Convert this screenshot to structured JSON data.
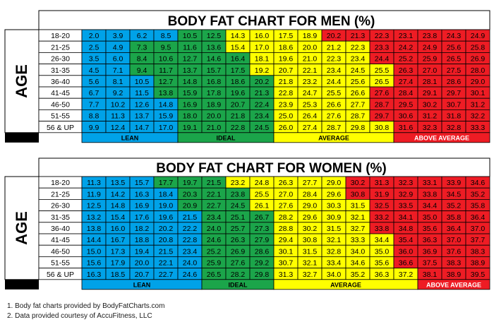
{
  "chart_data": [
    {
      "type": "table",
      "title": "BODY FAT CHART FOR MEN (%)",
      "side_label": "AGE",
      "rows": [
        "18-20",
        "21-25",
        "26-30",
        "31-35",
        "36-40",
        "41-45",
        "46-50",
        "51-55",
        "56 & UP"
      ],
      "values": [
        [
          2.0,
          3.9,
          6.2,
          8.5,
          10.5,
          12.5,
          14.3,
          16.0,
          17.5,
          18.9,
          20.2,
          21.3,
          22.3,
          23.1,
          23.8,
          24.3,
          24.9
        ],
        [
          2.5,
          4.9,
          7.3,
          9.5,
          11.6,
          13.6,
          15.4,
          17.0,
          18.6,
          20.0,
          21.2,
          22.3,
          23.3,
          24.2,
          24.9,
          25.6,
          25.8
        ],
        [
          3.5,
          6.0,
          8.4,
          10.6,
          12.7,
          14.6,
          16.4,
          18.1,
          19.6,
          21.0,
          22.3,
          23.4,
          24.4,
          25.2,
          25.9,
          26.5,
          26.9
        ],
        [
          4.5,
          7.1,
          9.4,
          11.7,
          13.7,
          15.7,
          17.5,
          19.2,
          20.7,
          22.1,
          23.4,
          24.5,
          25.5,
          26.3,
          27.0,
          27.5,
          28.0
        ],
        [
          5.6,
          8.1,
          10.5,
          12.7,
          14.8,
          16.8,
          18.6,
          20.2,
          21.8,
          23.2,
          24.4,
          25.6,
          26.5,
          27.4,
          28.1,
          28.6,
          29.0
        ],
        [
          6.7,
          9.2,
          11.5,
          13.8,
          15.9,
          17.8,
          19.6,
          21.3,
          22.8,
          24.7,
          25.5,
          26.6,
          27.6,
          28.4,
          29.1,
          29.7,
          30.1
        ],
        [
          7.7,
          10.2,
          12.6,
          14.8,
          16.9,
          18.9,
          20.7,
          22.4,
          23.9,
          25.3,
          26.6,
          27.7,
          28.7,
          29.5,
          30.2,
          30.7,
          31.2
        ],
        [
          8.8,
          11.3,
          13.7,
          15.9,
          18.0,
          20.0,
          21.8,
          23.4,
          25.0,
          26.4,
          27.6,
          28.7,
          29.7,
          30.6,
          31.2,
          31.8,
          32.2
        ],
        [
          9.9,
          12.4,
          14.7,
          17.0,
          19.1,
          21.0,
          22.8,
          24.5,
          26.0,
          27.4,
          28.7,
          29.8,
          30.8,
          31.6,
          32.3,
          32.8,
          33.3
        ]
      ],
      "categories": [
        {
          "label": "LEAN",
          "color": "#00a2e8",
          "columns": 4
        },
        {
          "label": "IDEAL",
          "color": "#1ba54a",
          "columns": 4
        },
        {
          "label": "AVERAGE",
          "color": "#ffff00",
          "columns": 5
        },
        {
          "label": "ABOVE AVERAGE",
          "color": "#ee1c24",
          "columns": 4
        }
      ],
      "cell_zones": [
        [
          0,
          0,
          0,
          0,
          1,
          1,
          2,
          2,
          2,
          2,
          3,
          3,
          3,
          3,
          3,
          3,
          3
        ],
        [
          0,
          0,
          1,
          1,
          1,
          1,
          2,
          2,
          2,
          2,
          2,
          2,
          3,
          3,
          3,
          3,
          3
        ],
        [
          0,
          0,
          1,
          1,
          1,
          1,
          1,
          2,
          2,
          2,
          2,
          2,
          3,
          3,
          3,
          3,
          3
        ],
        [
          0,
          0,
          1,
          1,
          1,
          1,
          1,
          2,
          2,
          2,
          2,
          2,
          2,
          3,
          3,
          3,
          3
        ],
        [
          0,
          0,
          0,
          1,
          1,
          1,
          1,
          1,
          2,
          2,
          2,
          2,
          2,
          3,
          3,
          3,
          3
        ],
        [
          0,
          0,
          0,
          1,
          1,
          1,
          1,
          1,
          2,
          2,
          2,
          2,
          3,
          3,
          3,
          3,
          3
        ],
        [
          0,
          0,
          0,
          0,
          1,
          1,
          1,
          1,
          2,
          2,
          2,
          2,
          3,
          3,
          3,
          3,
          3
        ],
        [
          0,
          0,
          0,
          0,
          1,
          1,
          1,
          1,
          2,
          2,
          2,
          2,
          3,
          3,
          3,
          3,
          3
        ],
        [
          0,
          0,
          0,
          0,
          1,
          1,
          1,
          1,
          2,
          2,
          2,
          2,
          2,
          3,
          3,
          3,
          3
        ]
      ]
    },
    {
      "type": "table",
      "title": "BODY FAT CHART FOR WOMEN (%)",
      "side_label": "AGE",
      "rows": [
        "18-20",
        "21-25",
        "26-30",
        "31-35",
        "36-40",
        "41-45",
        "46-50",
        "51-55",
        "56 & UP"
      ],
      "values": [
        [
          11.3,
          13.5,
          15.7,
          17.7,
          19.7,
          21.5,
          23.2,
          24.8,
          26.3,
          27.7,
          29.0,
          30.2,
          31.3,
          32.3,
          33.1,
          33.9,
          34.6
        ],
        [
          11.9,
          14.2,
          16.3,
          18.4,
          20.3,
          22.1,
          23.8,
          25.5,
          27.0,
          28.4,
          29.6,
          30.8,
          31.9,
          32.9,
          33.8,
          34.5,
          35.2
        ],
        [
          12.5,
          14.8,
          16.9,
          19.0,
          20.9,
          22.7,
          24.5,
          26.1,
          27.6,
          29.0,
          30.3,
          31.5,
          32.5,
          33.5,
          34.4,
          35.2,
          35.8
        ],
        [
          13.2,
          15.4,
          17.6,
          19.6,
          21.5,
          23.4,
          25.1,
          26.7,
          28.2,
          29.6,
          30.9,
          32.1,
          33.2,
          34.1,
          35.0,
          35.8,
          36.4
        ],
        [
          13.8,
          16.0,
          18.2,
          20.2,
          22.2,
          24.0,
          25.7,
          27.3,
          28.8,
          30.2,
          31.5,
          32.7,
          33.8,
          34.8,
          35.6,
          36.4,
          37.0
        ],
        [
          14.4,
          16.7,
          18.8,
          20.8,
          22.8,
          24.6,
          26.3,
          27.9,
          29.4,
          30.8,
          32.1,
          33.3,
          34.4,
          35.4,
          36.3,
          37.0,
          37.7
        ],
        [
          15.0,
          17.3,
          19.4,
          21.5,
          23.4,
          25.2,
          26.9,
          28.6,
          30.1,
          31.5,
          32.8,
          34.0,
          35.0,
          36.0,
          36.9,
          37.6,
          38.3
        ],
        [
          15.6,
          17.9,
          20.0,
          22.1,
          24.0,
          25.9,
          27.6,
          29.2,
          30.7,
          32.1,
          33.4,
          34.6,
          35.6,
          36.6,
          37.5,
          38.3,
          38.9
        ],
        [
          16.3,
          18.5,
          20.7,
          22.7,
          24.6,
          26.5,
          28.2,
          29.8,
          31.3,
          32.7,
          34.0,
          35.2,
          36.3,
          37.2,
          38.1,
          38.9,
          39.5
        ]
      ],
      "categories": [
        {
          "label": "LEAN",
          "color": "#00a2e8",
          "columns": 5
        },
        {
          "label": "IDEAL",
          "color": "#1ba54a",
          "columns": 3
        },
        {
          "label": "AVERAGE",
          "color": "#ffff00",
          "columns": 6
        },
        {
          "label": "ABOVE AVERAGE",
          "color": "#ee1c24",
          "columns": 3
        }
      ],
      "cell_zones": [
        [
          0,
          0,
          0,
          1,
          1,
          1,
          2,
          2,
          2,
          2,
          2,
          3,
          3,
          3,
          3,
          3,
          3
        ],
        [
          0,
          0,
          0,
          0,
          1,
          1,
          1,
          2,
          2,
          2,
          2,
          3,
          3,
          3,
          3,
          3,
          3
        ],
        [
          0,
          0,
          0,
          0,
          1,
          1,
          1,
          2,
          2,
          2,
          2,
          2,
          3,
          3,
          3,
          3,
          3
        ],
        [
          0,
          0,
          0,
          0,
          0,
          1,
          1,
          1,
          2,
          2,
          2,
          2,
          3,
          3,
          3,
          3,
          3
        ],
        [
          0,
          0,
          0,
          0,
          0,
          1,
          1,
          1,
          2,
          2,
          2,
          2,
          3,
          3,
          3,
          3,
          3
        ],
        [
          0,
          0,
          0,
          0,
          0,
          1,
          1,
          1,
          2,
          2,
          2,
          2,
          2,
          3,
          3,
          3,
          3
        ],
        [
          0,
          0,
          0,
          0,
          0,
          1,
          1,
          1,
          2,
          2,
          2,
          2,
          2,
          3,
          3,
          3,
          3
        ],
        [
          0,
          0,
          0,
          0,
          0,
          1,
          1,
          1,
          2,
          2,
          2,
          2,
          2,
          3,
          3,
          3,
          3
        ],
        [
          0,
          0,
          0,
          0,
          0,
          1,
          1,
          1,
          2,
          2,
          2,
          2,
          2,
          2,
          3,
          3,
          3
        ]
      ]
    }
  ],
  "footnotes": [
    "1. Body fat charts provided by BodyFatCharts.com",
    "2. Data provided courtesy of AccuFitness, LLC"
  ]
}
